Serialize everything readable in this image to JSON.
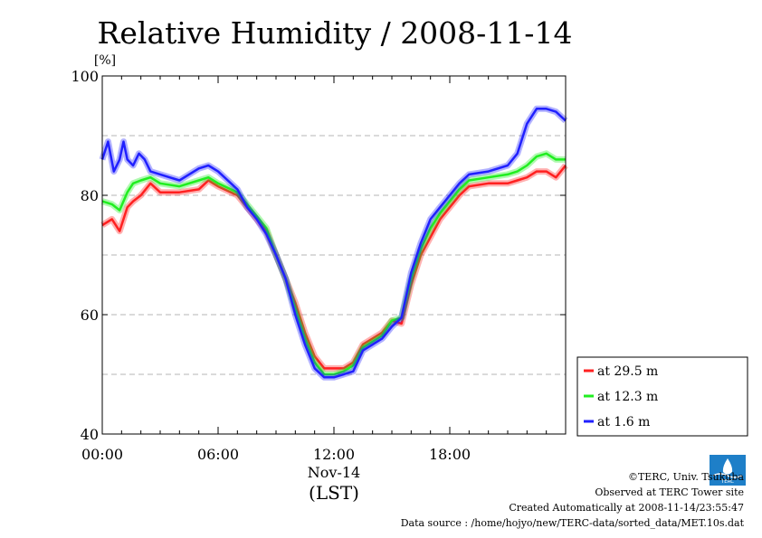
{
  "chart_data": {
    "type": "line",
    "title": "Relative Humidity / 2008-11-14",
    "y_unit": "[%]",
    "ylim": [
      40,
      100
    ],
    "y_ticks": [
      "40",
      "60",
      "80",
      "100"
    ],
    "xlim_hours": [
      0,
      24
    ],
    "x_ticks": [
      "00:00",
      "06:00",
      "12:00",
      "18:00"
    ],
    "x_sublabel": "Nov-14",
    "x_axis_label": "(LST)",
    "grid": "horizontal dashed",
    "legend_placement": "bottom-right, outside plot",
    "series": [
      {
        "name": "at 29.5 m",
        "color": "#ff2020",
        "x": [
          0,
          0.5,
          0.9,
          1.3,
          1.6,
          2.0,
          2.5,
          3.0,
          4.0,
          5.0,
          5.5,
          6.0,
          7.0,
          7.5,
          8.0,
          8.5,
          9.0,
          9.5,
          10.0,
          10.5,
          11.0,
          11.5,
          12.0,
          12.5,
          13.0,
          13.5,
          14.0,
          14.5,
          15.0,
          15.5,
          16.0,
          16.5,
          17.0,
          17.5,
          18.0,
          18.5,
          19.0,
          20.0,
          21.0,
          21.5,
          22.0,
          22.5,
          23.0,
          23.5,
          24.0
        ],
        "values": [
          75,
          76,
          74,
          78,
          79,
          80,
          82,
          80.5,
          80.5,
          81,
          82.5,
          81.5,
          80,
          78,
          76,
          74,
          70,
          66,
          62,
          57,
          53,
          51,
          51,
          51,
          52,
          55,
          56,
          57,
          59,
          58.5,
          65,
          70,
          73,
          76,
          78,
          80,
          81.5,
          82,
          82,
          82.5,
          83,
          84,
          84,
          83,
          85
        ]
      },
      {
        "name": "at 12.3 m",
        "color": "#20ee20",
        "x": [
          0,
          0.5,
          0.9,
          1.3,
          1.6,
          2.0,
          2.5,
          3.0,
          4.0,
          5.0,
          5.5,
          6.0,
          7.0,
          7.5,
          8.0,
          8.5,
          9.0,
          9.5,
          10.0,
          10.5,
          11.0,
          11.5,
          12.0,
          12.5,
          13.0,
          13.5,
          14.0,
          14.5,
          15.0,
          15.5,
          16.0,
          16.5,
          17.0,
          17.5,
          18.0,
          18.5,
          19.0,
          20.0,
          21.0,
          21.5,
          22.0,
          22.5,
          23.0,
          23.5,
          24.0
        ],
        "values": [
          79,
          78.5,
          77.5,
          80.5,
          82,
          82.5,
          83,
          82,
          81.5,
          82.5,
          83,
          82,
          80.5,
          78.5,
          76.5,
          74.5,
          70,
          66,
          61,
          56,
          52,
          50,
          50,
          50.5,
          51.5,
          54.5,
          55.5,
          56.5,
          59,
          59.5,
          66,
          71,
          74.5,
          77,
          79,
          81,
          82.5,
          83,
          83.5,
          84,
          85,
          86.5,
          87,
          86,
          86
        ]
      },
      {
        "name": "at 1.6 m",
        "color": "#2020ff",
        "x": [
          0,
          0.3,
          0.6,
          0.9,
          1.1,
          1.3,
          1.6,
          1.9,
          2.2,
          2.5,
          3.0,
          4.0,
          5.0,
          5.5,
          6.0,
          7.0,
          7.5,
          8.0,
          8.5,
          9.0,
          9.5,
          10.0,
          10.5,
          11.0,
          11.5,
          12.0,
          12.5,
          13.0,
          13.5,
          14.0,
          14.5,
          15.0,
          15.5,
          16.0,
          16.5,
          17.0,
          17.5,
          18.0,
          18.5,
          19.0,
          20.0,
          21.0,
          21.5,
          22.0,
          22.5,
          23.0,
          23.5,
          24.0
        ],
        "values": [
          86,
          89,
          84,
          86,
          89,
          86,
          85,
          87,
          86,
          84,
          83.5,
          82.5,
          84.5,
          85,
          84,
          81,
          78,
          76,
          73.5,
          70,
          66,
          60,
          55,
          51,
          49.5,
          49.5,
          50,
          50.5,
          54,
          55,
          56,
          58,
          59.5,
          67,
          72,
          76,
          78,
          80,
          82,
          83.5,
          84,
          85,
          87,
          92,
          94.5,
          94.5,
          94,
          92.5
        ]
      }
    ]
  },
  "footer": {
    "credit": "©TERC, Univ. Tsukuba",
    "site": "Observed at TERC Tower site",
    "created": "Created Automatically at 2008-11-14/23:55:47",
    "source": "Data source : /home/hojyo/new/TERC-data/sorted_data/MET.10s.dat"
  },
  "logo": {
    "text": "TERC"
  }
}
